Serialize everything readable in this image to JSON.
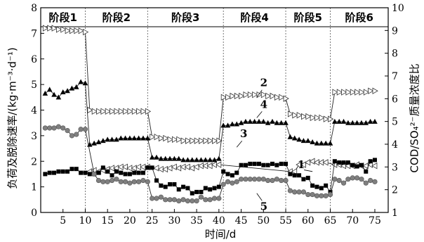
{
  "chart_data": {
    "type": "line",
    "x_label": "时间/d",
    "y_left_label": "负荷及脱除速率/(kg·m⁻³·d⁻¹)",
    "y_right_label": "COD/SO₄²⁻质量浓度比",
    "xlim": [
      0,
      78
    ],
    "ylim_left": [
      0,
      8
    ],
    "ylim_right": [
      1,
      10
    ],
    "x_ticks": [
      5,
      10,
      15,
      20,
      25,
      30,
      35,
      40,
      45,
      50,
      55,
      60,
      65,
      70,
      75
    ],
    "y_left_ticks": [
      0,
      1,
      2,
      3,
      4,
      5,
      6,
      7,
      8
    ],
    "y_right_ticks": [
      1,
      2,
      3,
      4,
      5,
      6,
      7,
      8,
      9,
      10
    ],
    "grid": false,
    "stages": [
      {
        "label": "阶段1",
        "start": 0,
        "end": 10
      },
      {
        "label": "阶段2",
        "start": 10,
        "end": 24
      },
      {
        "label": "阶段3",
        "start": 24,
        "end": 41
      },
      {
        "label": "阶段4",
        "start": 41,
        "end": 55
      },
      {
        "label": "阶段5",
        "start": 55,
        "end": 65
      },
      {
        "label": "阶段6",
        "start": 65,
        "end": 78
      }
    ],
    "series_labels": [
      {
        "text": "1",
        "x": 61,
        "y": 2.8,
        "series": "s1"
      },
      {
        "text": "2",
        "x": 48.5,
        "y": 4.5,
        "series": "s2"
      },
      {
        "text": "3",
        "x": 44,
        "y": 2.55,
        "series": "s3"
      },
      {
        "text": "4",
        "x": 48.5,
        "y": 3.7,
        "series": "s4"
      },
      {
        "text": "5",
        "x": 48.5,
        "y": 0.75,
        "series": "s5"
      }
    ],
    "series": [
      {
        "id": "s1",
        "marker": "tri-left-open",
        "axis": "right",
        "x": [
          11,
          12,
          13,
          14,
          15,
          16,
          17,
          18,
          19,
          20,
          21,
          22,
          23,
          24,
          26,
          27,
          28,
          29,
          30,
          31,
          32,
          33,
          34,
          35,
          36,
          37,
          38,
          39,
          40,
          56,
          57,
          58,
          59,
          60,
          61,
          62,
          63,
          64,
          66,
          67,
          68,
          69,
          70,
          71,
          72,
          73,
          74,
          75
        ],
        "y": [
          2.8,
          2.85,
          2.8,
          2.85,
          2.9,
          2.95,
          2.95,
          3.0,
          3.0,
          2.95,
          2.95,
          3.0,
          3.0,
          3.0,
          2.95,
          2.9,
          2.9,
          2.95,
          3.0,
          2.95,
          3.0,
          3.0,
          2.95,
          3.0,
          3.05,
          3.05,
          3.05,
          3.1,
          3.1,
          2.8,
          2.8,
          3.1,
          3.1,
          3.2,
          3.25,
          3.2,
          3.2,
          3.2,
          3.1,
          3.1,
          3.05,
          3.05,
          3.05,
          3.1,
          3.05,
          3.05,
          3.1,
          3.05
        ]
      },
      {
        "id": "s2",
        "marker": "tri-right-open",
        "axis": "left",
        "x": [
          1,
          2,
          3,
          4,
          5,
          6,
          7,
          8,
          9,
          10,
          11,
          12,
          13,
          14,
          15,
          16,
          17,
          18,
          19,
          20,
          21,
          22,
          23,
          24,
          25,
          26,
          27,
          28,
          29,
          30,
          31,
          32,
          33,
          34,
          35,
          36,
          37,
          38,
          39,
          40,
          41,
          42,
          43,
          44,
          45,
          46,
          47,
          48,
          49,
          50,
          51,
          52,
          53,
          54,
          55,
          56,
          57,
          58,
          59,
          60,
          61,
          62,
          63,
          64,
          65,
          66,
          67,
          68,
          69,
          70,
          71,
          72,
          73,
          74,
          75
        ],
        "y": [
          7.2,
          7.2,
          7.2,
          7.15,
          7.15,
          7.1,
          7.1,
          7.1,
          7.1,
          7.05,
          4.0,
          3.95,
          3.95,
          3.95,
          3.95,
          3.95,
          3.95,
          3.95,
          3.95,
          3.95,
          3.95,
          3.95,
          3.95,
          3.95,
          2.95,
          2.95,
          2.9,
          2.9,
          2.85,
          2.85,
          2.85,
          2.8,
          2.8,
          2.8,
          2.8,
          2.8,
          2.8,
          2.8,
          2.8,
          2.8,
          4.5,
          4.5,
          4.55,
          4.55,
          4.55,
          4.6,
          4.6,
          4.6,
          4.6,
          4.6,
          4.55,
          4.55,
          4.5,
          4.5,
          4.45,
          3.85,
          3.8,
          3.8,
          3.75,
          3.75,
          3.7,
          3.7,
          3.7,
          3.65,
          3.65,
          4.7,
          4.7,
          4.7,
          4.7,
          4.7,
          4.7,
          4.7,
          4.7,
          4.75,
          4.75
        ]
      },
      {
        "id": "s3",
        "marker": "square",
        "axis": "left",
        "x": [
          1,
          2,
          3,
          4,
          5,
          6,
          7,
          8,
          9,
          10,
          11,
          12,
          13,
          14,
          15,
          16,
          17,
          18,
          19,
          20,
          21,
          22,
          23,
          24,
          25,
          26,
          27,
          28,
          29,
          30,
          31,
          32,
          33,
          34,
          35,
          36,
          37,
          38,
          39,
          40,
          41,
          42,
          43,
          44,
          45,
          46,
          47,
          48,
          49,
          50,
          51,
          52,
          53,
          54,
          55,
          56,
          57,
          58,
          59,
          60,
          61,
          62,
          63,
          64,
          65,
          66,
          67,
          68,
          69,
          70,
          71,
          72,
          73,
          74,
          75
        ],
        "y": [
          1.5,
          1.55,
          1.55,
          1.6,
          1.6,
          1.6,
          1.7,
          1.7,
          1.55,
          1.55,
          1.5,
          1.5,
          1.55,
          1.75,
          1.6,
          1.45,
          1.6,
          1.55,
          1.5,
          1.5,
          1.55,
          1.55,
          1.55,
          1.75,
          1.75,
          1.25,
          1.05,
          1.0,
          1.1,
          1.1,
          0.9,
          1.0,
          0.95,
          0.75,
          0.8,
          0.8,
          0.95,
          0.9,
          0.95,
          1.0,
          1.6,
          1.5,
          1.45,
          1.55,
          1.85,
          1.85,
          1.9,
          1.9,
          1.9,
          1.85,
          1.85,
          1.9,
          1.85,
          1.9,
          1.9,
          1.5,
          1.45,
          1.45,
          1.3,
          1.35,
          1.05,
          1.0,
          0.95,
          1.05,
          0.8,
          2.0,
          1.95,
          1.95,
          1.95,
          1.85,
          1.8,
          1.85,
          1.6,
          2.0,
          2.05
        ]
      },
      {
        "id": "s4",
        "marker": "triangle-up",
        "axis": "left",
        "x": [
          1,
          2,
          3,
          4,
          5,
          6,
          7,
          8,
          9,
          10,
          11,
          12,
          13,
          14,
          15,
          16,
          17,
          18,
          19,
          20,
          21,
          22,
          23,
          24,
          25,
          26,
          27,
          28,
          29,
          30,
          31,
          32,
          33,
          34,
          35,
          36,
          37,
          38,
          39,
          40,
          41,
          42,
          43,
          44,
          45,
          46,
          47,
          48,
          49,
          50,
          51,
          52,
          53,
          54,
          55,
          56,
          57,
          58,
          59,
          60,
          61,
          62,
          63,
          64,
          65,
          66,
          67,
          68,
          69,
          70,
          71,
          72,
          73,
          74,
          75
        ],
        "y": [
          4.65,
          4.8,
          4.6,
          4.5,
          4.7,
          4.75,
          4.85,
          4.9,
          5.1,
          5.05,
          2.65,
          2.7,
          2.75,
          2.8,
          2.85,
          2.85,
          2.85,
          2.9,
          2.9,
          2.9,
          2.9,
          2.9,
          2.9,
          2.9,
          2.15,
          2.15,
          2.1,
          2.1,
          2.1,
          2.1,
          2.1,
          2.05,
          2.05,
          2.05,
          2.05,
          2.05,
          2.05,
          2.05,
          2.05,
          2.1,
          3.4,
          3.4,
          3.45,
          3.45,
          3.5,
          3.55,
          3.55,
          3.55,
          3.55,
          3.55,
          3.5,
          3.55,
          3.5,
          3.5,
          3.5,
          2.95,
          2.9,
          2.85,
          2.8,
          2.8,
          2.75,
          2.7,
          2.7,
          2.7,
          2.7,
          3.55,
          3.55,
          3.55,
          3.5,
          3.5,
          3.5,
          3.5,
          3.5,
          3.55,
          3.55
        ]
      },
      {
        "id": "s5",
        "marker": "circle",
        "axis": "left",
        "x": [
          1,
          2,
          3,
          4,
          5,
          6,
          7,
          8,
          9,
          10,
          12,
          13,
          14,
          15,
          16,
          17,
          18,
          19,
          20,
          21,
          22,
          23,
          24,
          25,
          26,
          27,
          28,
          29,
          30,
          31,
          32,
          33,
          34,
          35,
          36,
          37,
          38,
          39,
          40,
          41,
          42,
          43,
          44,
          45,
          46,
          47,
          48,
          49,
          50,
          51,
          52,
          53,
          54,
          55,
          56,
          57,
          58,
          59,
          60,
          61,
          62,
          63,
          64,
          65,
          66,
          67,
          68,
          69,
          70,
          71,
          72,
          73,
          74,
          75
        ],
        "y": [
          3.3,
          3.3,
          3.3,
          3.35,
          3.3,
          3.2,
          3.0,
          3.05,
          3.25,
          3.25,
          1.5,
          1.25,
          1.2,
          1.2,
          1.25,
          1.3,
          1.2,
          1.2,
          1.15,
          1.2,
          1.2,
          1.25,
          1.2,
          0.55,
          0.55,
          0.6,
          0.5,
          0.5,
          0.5,
          0.45,
          0.5,
          0.45,
          0.45,
          0.45,
          0.6,
          0.5,
          0.5,
          0.55,
          0.55,
          1.1,
          1.2,
          1.15,
          1.2,
          1.3,
          1.3,
          1.3,
          1.3,
          1.3,
          1.3,
          1.25,
          1.25,
          1.3,
          1.25,
          1.25,
          0.85,
          0.8,
          0.8,
          0.8,
          0.7,
          0.7,
          0.65,
          0.65,
          0.65,
          0.7,
          1.3,
          1.25,
          1.15,
          1.3,
          1.35,
          1.35,
          1.3,
          1.15,
          1.25,
          1.2
        ]
      }
    ]
  }
}
